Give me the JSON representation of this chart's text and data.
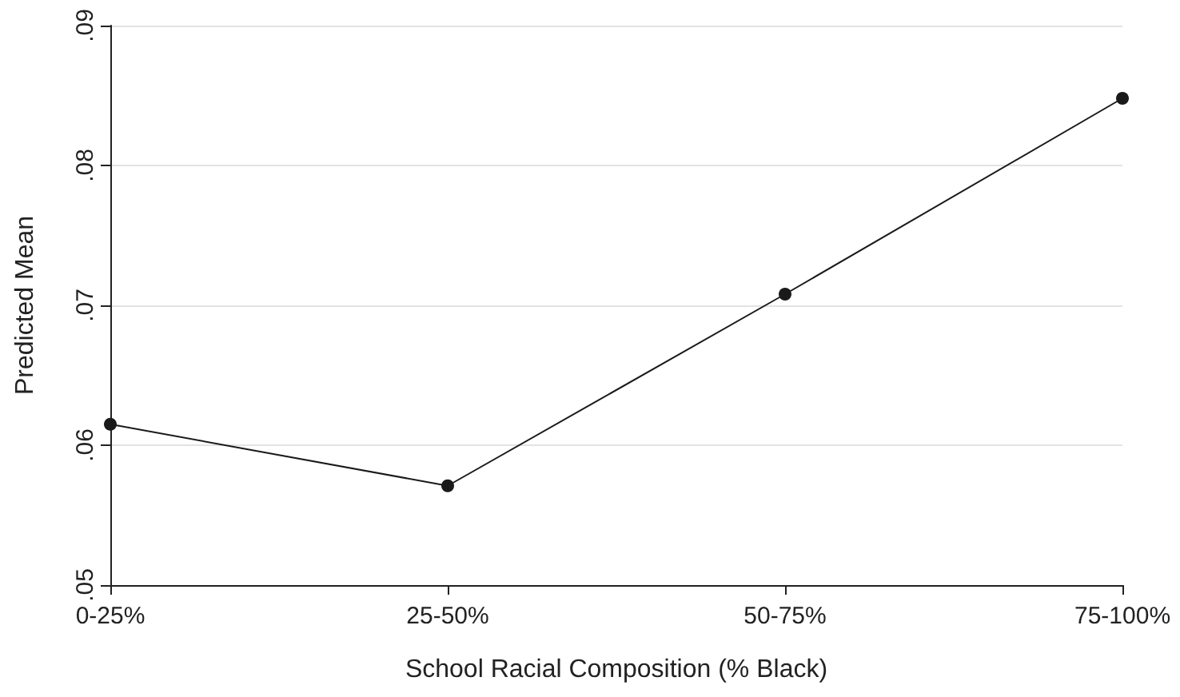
{
  "chart_data": {
    "type": "line",
    "xlabel": "School Racial Composition (% Black)",
    "ylabel": "Predicted Mean",
    "categories": [
      "0-25%",
      "25-50%",
      "50-75%",
      "75-100%"
    ],
    "series": [
      {
        "color": "#1a1a1a",
        "values": [
          0.0615,
          0.0571,
          0.0708,
          0.0848
        ]
      }
    ],
    "ylim": [
      0.05,
      0.09
    ],
    "yticks": [
      {
        "value": 0.05,
        "label": ".05"
      },
      {
        "value": 0.06,
        "label": ".06"
      },
      {
        "value": 0.07,
        "label": ".07"
      },
      {
        "value": 0.08,
        "label": ".08"
      },
      {
        "value": 0.09,
        "label": ".09"
      }
    ],
    "grid": "y",
    "marker": "circle",
    "line_style": "solid"
  }
}
